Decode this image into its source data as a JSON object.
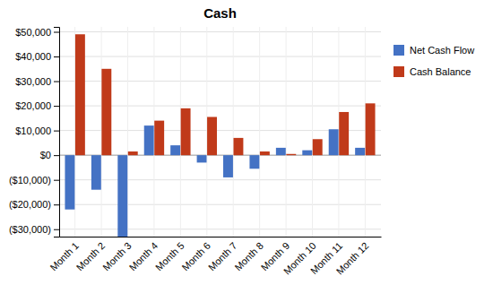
{
  "chart_data": {
    "type": "bar",
    "title": "Cash",
    "categories": [
      "Month 1",
      "Month 2",
      "Month 3",
      "Month 4",
      "Month 5",
      "Month 6",
      "Month 7",
      "Month 8",
      "Month 9",
      "Month 10",
      "Month 11",
      "Month 12"
    ],
    "series": [
      {
        "name": "Net Cash Flow",
        "color": "#4472C4",
        "values": [
          -22000,
          -14000,
          -33000,
          12000,
          4000,
          -3000,
          -9000,
          -5500,
          3000,
          2000,
          10500,
          3000
        ]
      },
      {
        "name": "Cash Balance",
        "color": "#C03A1A",
        "values": [
          49000,
          35000,
          1500,
          14000,
          19000,
          15500,
          7000,
          1500,
          500,
          6500,
          17500,
          21000
        ]
      }
    ],
    "ylim": [
      -33000,
      52000
    ],
    "yticks": [
      {
        "value": -30000,
        "label": "($30,000)"
      },
      {
        "value": -20000,
        "label": "($20,000)"
      },
      {
        "value": -10000,
        "label": "($10,000)"
      },
      {
        "value": 0,
        "label": "$0"
      },
      {
        "value": 10000,
        "label": "$10,000"
      },
      {
        "value": 20000,
        "label": "$20,000"
      },
      {
        "value": 30000,
        "label": "$30,000"
      },
      {
        "value": 40000,
        "label": "$40,000"
      },
      {
        "value": 50000,
        "label": "$50,000"
      }
    ],
    "grid": true,
    "legend": "right"
  }
}
